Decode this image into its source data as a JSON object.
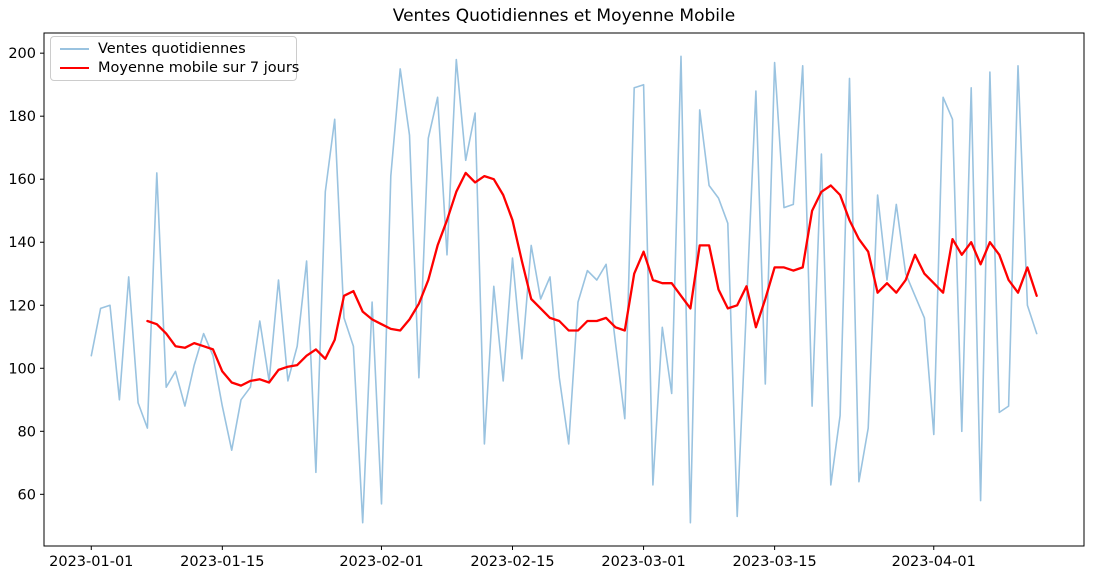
{
  "figure": {
    "background_color": "#ffffff",
    "text_color": "#000000",
    "axis_color": "#000000"
  },
  "chart_data": {
    "type": "line",
    "title": "Ventes Quotidiennes et Moyenne Mobile",
    "xlabel": "",
    "ylabel": "",
    "grid": false,
    "legend_position": "upper left",
    "x_axis": {
      "start_date": "2023-01-01",
      "end_date": "2023-04-12",
      "frequency": "daily",
      "tick_labels": [
        "2023-01-01",
        "2023-01-15",
        "2023-02-01",
        "2023-02-15",
        "2023-03-01",
        "2023-03-15",
        "2023-04-01"
      ],
      "tick_day_offsets": [
        0,
        14,
        31,
        45,
        59,
        73,
        90
      ],
      "xlim_day_offsets": [
        -5.05,
        106.05
      ]
    },
    "y_axis": {
      "ticks": [
        60,
        80,
        100,
        120,
        140,
        160,
        180,
        200
      ],
      "ylim": [
        43.6,
        206.4
      ]
    },
    "series": [
      {
        "name": "Ventes quotidiennes",
        "color": "#9ac3e0",
        "line_width": 1.6,
        "start_day_offset": 0,
        "values": [
          104,
          119,
          120,
          90,
          129,
          89,
          81,
          162,
          94,
          99,
          88,
          101,
          111,
          104,
          88,
          74,
          90,
          94,
          115,
          96,
          128,
          96,
          107,
          134,
          67,
          156,
          179,
          116,
          107,
          51,
          121,
          57,
          161,
          195,
          174,
          97,
          173,
          186,
          136,
          198,
          166,
          181,
          76,
          126,
          96,
          135,
          103,
          139,
          122,
          129,
          97,
          76,
          121,
          131,
          128,
          133,
          108,
          84,
          189,
          190,
          63,
          113,
          92,
          199,
          51,
          182,
          158,
          154,
          146,
          53,
          120,
          188,
          95,
          197,
          151,
          152,
          196,
          88,
          168,
          63,
          85,
          192,
          64,
          81,
          155,
          128,
          152,
          130,
          123,
          116,
          79,
          186,
          179,
          80,
          189,
          58,
          194,
          86,
          88,
          196,
          120,
          111
        ]
      },
      {
        "name": "Moyenne mobile sur 7 jours",
        "color": "#ff0000",
        "line_width": 2.3,
        "start_day_offset": 6,
        "values": [
          115,
          114,
          111,
          107,
          106.5,
          108,
          107,
          106,
          99,
          95.5,
          94.5,
          96,
          96.5,
          95.5,
          99.5,
          100.5,
          101,
          104,
          106,
          103,
          109,
          123,
          124.5,
          118,
          115.5,
          114,
          112.5,
          112,
          115.5,
          120.5,
          128,
          139,
          147,
          156,
          162,
          159,
          161,
          160,
          155,
          147,
          134,
          122,
          119,
          116,
          115,
          112,
          112,
          115,
          115,
          116,
          113,
          112,
          130,
          137,
          128,
          127,
          127,
          123,
          119,
          139,
          139,
          125,
          119,
          120,
          126,
          113,
          122,
          132,
          132,
          131,
          132,
          150,
          156,
          158,
          155,
          147,
          141,
          137,
          124,
          127,
          124,
          128,
          136,
          130,
          127,
          124,
          141,
          136,
          140,
          133,
          140,
          136,
          128,
          124,
          132,
          123
        ]
      }
    ]
  }
}
